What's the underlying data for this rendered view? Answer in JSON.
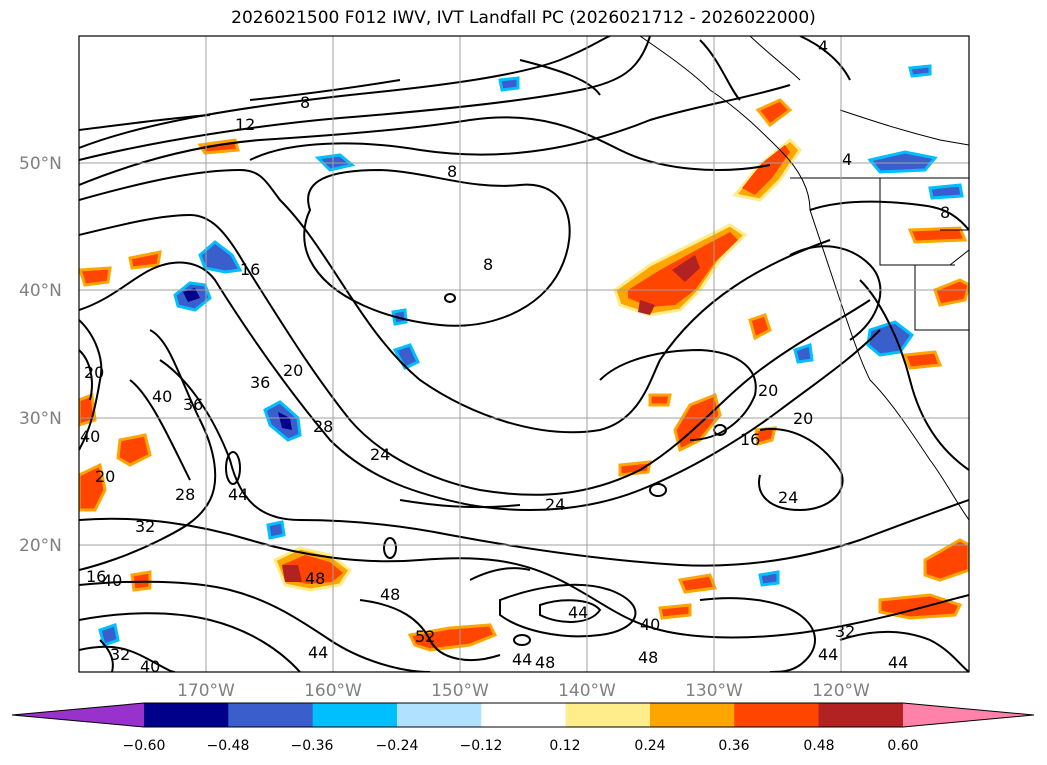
{
  "title": "2026021500 F012 IWV, IVT Landfall PC (2026021712 - 2026022000)",
  "lat_labels": [
    "50°N",
    "40°N",
    "30°N",
    "20°N"
  ],
  "lon_labels": [
    "170°W",
    "160°W",
    "150°W",
    "140°W",
    "130°W",
    "120°W"
  ],
  "colorbar": {
    "ticks": [
      "−0.60",
      "−0.48",
      "−0.36",
      "−0.24",
      "−0.12",
      "0.12",
      "0.24",
      "0.36",
      "0.48",
      "0.60"
    ],
    "colors": [
      "#9932CC",
      "#00008B",
      "#3A5FCD",
      "#00BFFF",
      "#B0E2FF",
      "#FFFFFF",
      "#FFEC8B",
      "#FFA500",
      "#FF4500",
      "#B22222",
      "#FF82AB"
    ]
  },
  "contour_labels": [
    "4",
    "8",
    "12",
    "8",
    "4",
    "8",
    "8",
    "16",
    "20",
    "36",
    "28",
    "24",
    "40",
    "36",
    "44",
    "28",
    "20",
    "24",
    "16",
    "20",
    "20",
    "24",
    "32",
    "20",
    "40",
    "48",
    "48",
    "44",
    "52",
    "40",
    "44",
    "48",
    "48",
    "44",
    "32",
    "44",
    "44",
    "16",
    "40",
    "32",
    "40"
  ],
  "colors": {
    "contour": "#000000",
    "grid": "#A0A0A0",
    "axis_label": "#808080"
  }
}
